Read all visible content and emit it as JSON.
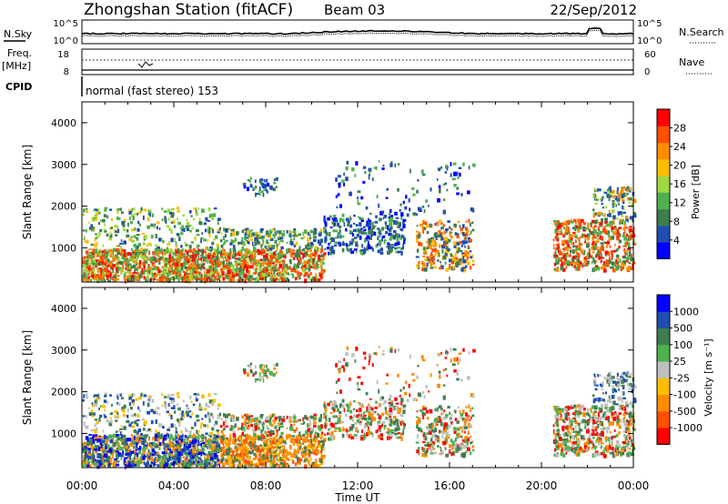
{
  "header": {
    "title": "Zhongshan Station (fitACF)",
    "beam": "Beam 03",
    "date": "22/Sep/2012"
  },
  "top_panels": {
    "nsky_label": "N.Sky",
    "nsky_ticks": [
      "10^5",
      "10^0"
    ],
    "nsearch_label": "N.Search",
    "nsearch_ticks": [
      "10^5",
      "10^0"
    ],
    "freq_label": "Freq.",
    "freq_unit": "[MHz]",
    "freq_ticks": [
      "18",
      "8"
    ],
    "nave_label": "Nave",
    "nave_ticks": [
      "60",
      "0"
    ],
    "cpid_label": "CPID",
    "cpid_text": "normal (fast stereo) 153"
  },
  "colors": {
    "power": [
      "#0000ff",
      "#1f4fb0",
      "#3f7f4f",
      "#4fb04f",
      "#9fd83f",
      "#ffbf00",
      "#ff8c00",
      "#ff5000",
      "#ff0000"
    ],
    "velocity": [
      "#0000ff",
      "#1f4fb0",
      "#3f7f4f",
      "#4fb04f",
      "#bfbfbf",
      "#ffbf00",
      "#ff8c00",
      "#ff5000",
      "#ff0000"
    ]
  },
  "chart_data": [
    {
      "type": "heatmap",
      "title": "Power",
      "ylabel": "Slant Range [km]",
      "xlabel": "Time UT",
      "xlim": [
        "00:00",
        "24:00"
      ],
      "ylim": [
        180,
        4500
      ],
      "x_ticks": [
        "00:00",
        "04:00",
        "08:00",
        "12:00",
        "16:00",
        "20:00",
        "00:00"
      ],
      "y_ticks": [
        1000,
        2000,
        3000,
        4000
      ],
      "colorbar": {
        "label": "Power",
        "unit": "[dB]",
        "ticks": [
          4,
          8,
          12,
          16,
          20,
          24,
          28
        ],
        "range": [
          0,
          30
        ]
      },
      "regions": [
        {
          "t": [
            0.0,
            6.0
          ],
          "r": [
            300,
            2000
          ],
          "level": "high"
        },
        {
          "t": [
            6.0,
            10.5
          ],
          "r": [
            300,
            1500
          ],
          "level": "high"
        },
        {
          "t": [
            10.5,
            17.0
          ],
          "r": [
            600,
            3100
          ],
          "level": "low"
        },
        {
          "t": [
            20.5,
            24.0
          ],
          "r": [
            500,
            2500
          ],
          "level": "high"
        }
      ]
    },
    {
      "type": "heatmap",
      "title": "Velocity",
      "ylabel": "Slant Range [km]",
      "xlabel": "Time UT",
      "xlim": [
        "00:00",
        "24:00"
      ],
      "ylim": [
        180,
        4500
      ],
      "x_ticks": [
        "00:00",
        "04:00",
        "08:00",
        "12:00",
        "16:00",
        "20:00",
        "00:00"
      ],
      "y_ticks": [
        1000,
        2000,
        3000,
        4000
      ],
      "colorbar": {
        "label": "Velocity",
        "unit": "[m s⁻¹]",
        "ticks": [
          1000,
          500,
          100,
          25,
          -25,
          -100,
          -500,
          -1000
        ]
      },
      "regions": [
        {
          "t": [
            0.0,
            6.0
          ],
          "r": [
            300,
            2000
          ],
          "level": "positive"
        },
        {
          "t": [
            6.0,
            10.5
          ],
          "r": [
            300,
            1500
          ],
          "level": "negative"
        },
        {
          "t": [
            10.5,
            17.0
          ],
          "r": [
            600,
            3100
          ],
          "level": "mixed"
        },
        {
          "t": [
            20.5,
            24.0
          ],
          "r": [
            500,
            2500
          ],
          "level": "mixed"
        }
      ]
    }
  ]
}
